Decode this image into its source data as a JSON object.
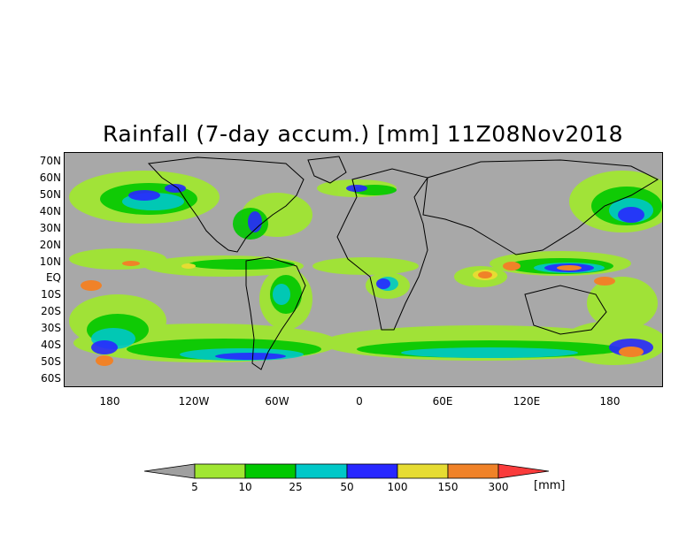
{
  "title": "Rainfall (7-day accum.) [mm] 11Z08Nov2018",
  "axes": {
    "lat_ticks": [
      "70N",
      "60N",
      "50N",
      "40N",
      "30N",
      "20N",
      "10N",
      "EQ",
      "10S",
      "20S",
      "30S",
      "40S",
      "50S",
      "60S"
    ],
    "lon_ticks": [
      "180",
      "120W",
      "60W",
      "0",
      "60E",
      "120E",
      "180"
    ]
  },
  "colorbar": {
    "unit": "[mm]",
    "thresholds": [
      "5",
      "10",
      "25",
      "50",
      "100",
      "150",
      "300"
    ],
    "colors": [
      "#a0a0a0",
      "#a0e632",
      "#00c800",
      "#00c8c8",
      "#2828ff",
      "#e6dc32",
      "#f08228",
      "#fa3c3c"
    ]
  },
  "map": {
    "background_color": "#a8a8a8",
    "coastline_color": "#000000"
  }
}
